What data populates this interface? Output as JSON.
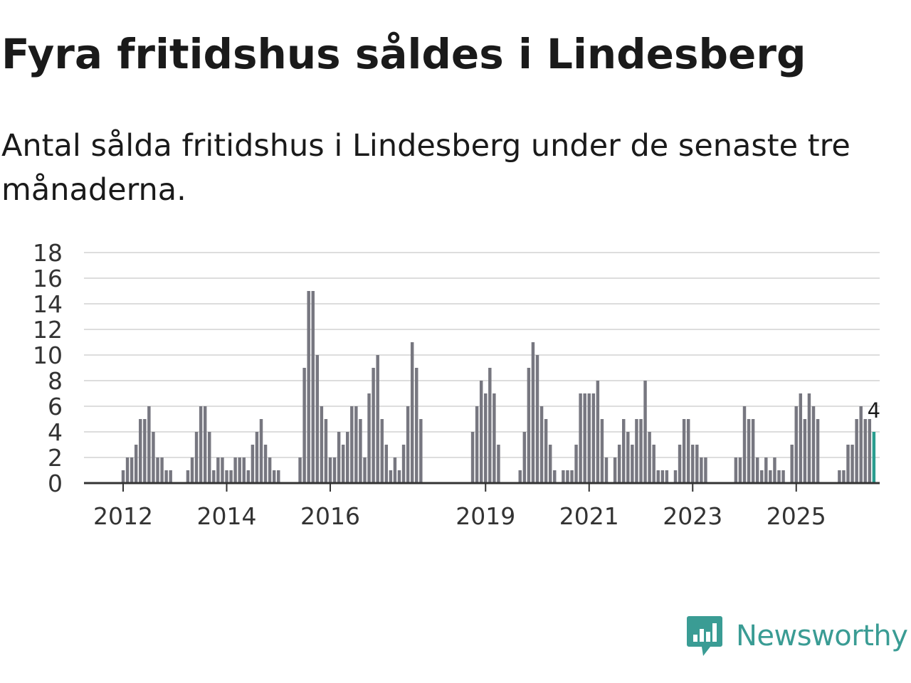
{
  "title": "Fyra fritidshus såldes i Lindesberg",
  "subtitle": "Antal sålda fritidshus i Lindesberg under de senaste tre månaderna.",
  "brand": {
    "name": "Newsworthy",
    "color": "#3a9c94",
    "icon": "newsworthy-logo-icon"
  },
  "colors": {
    "bar": "#777780",
    "highlight": "#2a9d8f",
    "grid": "#dddddd",
    "axis": "#333333"
  },
  "chart_data": {
    "type": "bar",
    "ylim": [
      0,
      18
    ],
    "yticks": [
      0,
      2,
      4,
      6,
      8,
      10,
      12,
      14,
      16,
      18
    ],
    "x_start": 2011.25,
    "x_step": 0.083333,
    "xticks": [
      {
        "label": "2012",
        "value": 2012
      },
      {
        "label": "2014",
        "value": 2014
      },
      {
        "label": "2016",
        "value": 2016
      },
      {
        "label": "2019",
        "value": 2019
      },
      {
        "label": "2021",
        "value": 2021
      },
      {
        "label": "2023",
        "value": 2023
      },
      {
        "label": "2025",
        "value": 2025
      }
    ],
    "values": [
      0,
      0,
      0,
      0,
      0,
      0,
      0,
      0,
      0,
      1,
      2,
      2,
      3,
      5,
      5,
      6,
      4,
      2,
      2,
      1,
      1,
      0,
      0,
      0,
      1,
      2,
      4,
      6,
      6,
      4,
      1,
      2,
      2,
      1,
      1,
      2,
      2,
      2,
      1,
      3,
      4,
      5,
      3,
      2,
      1,
      1,
      0,
      0,
      0,
      0,
      2,
      9,
      15,
      15,
      10,
      6,
      5,
      2,
      2,
      4,
      3,
      4,
      6,
      6,
      5,
      2,
      7,
      9,
      10,
      5,
      3,
      1,
      2,
      1,
      3,
      6,
      11,
      9,
      5,
      0,
      0,
      0,
      0,
      0,
      0,
      0,
      0,
      0,
      0,
      0,
      4,
      6,
      8,
      7,
      9,
      7,
      3,
      0,
      0,
      0,
      0,
      1,
      4,
      9,
      11,
      10,
      6,
      5,
      3,
      1,
      0,
      1,
      1,
      1,
      3,
      7,
      7,
      7,
      7,
      8,
      5,
      2,
      0,
      2,
      3,
      5,
      4,
      3,
      5,
      5,
      8,
      4,
      3,
      1,
      1,
      1,
      0,
      1,
      3,
      5,
      5,
      3,
      3,
      2,
      2,
      0,
      0,
      0,
      0,
      0,
      0,
      2,
      2,
      6,
      5,
      5,
      2,
      1,
      2,
      1,
      2,
      1,
      1,
      0,
      3,
      6,
      7,
      5,
      7,
      6,
      5,
      0,
      0,
      0,
      0,
      1,
      1,
      3,
      3,
      5,
      6,
      5,
      5,
      4
    ],
    "highlight_last": 3,
    "last_label": "4"
  }
}
